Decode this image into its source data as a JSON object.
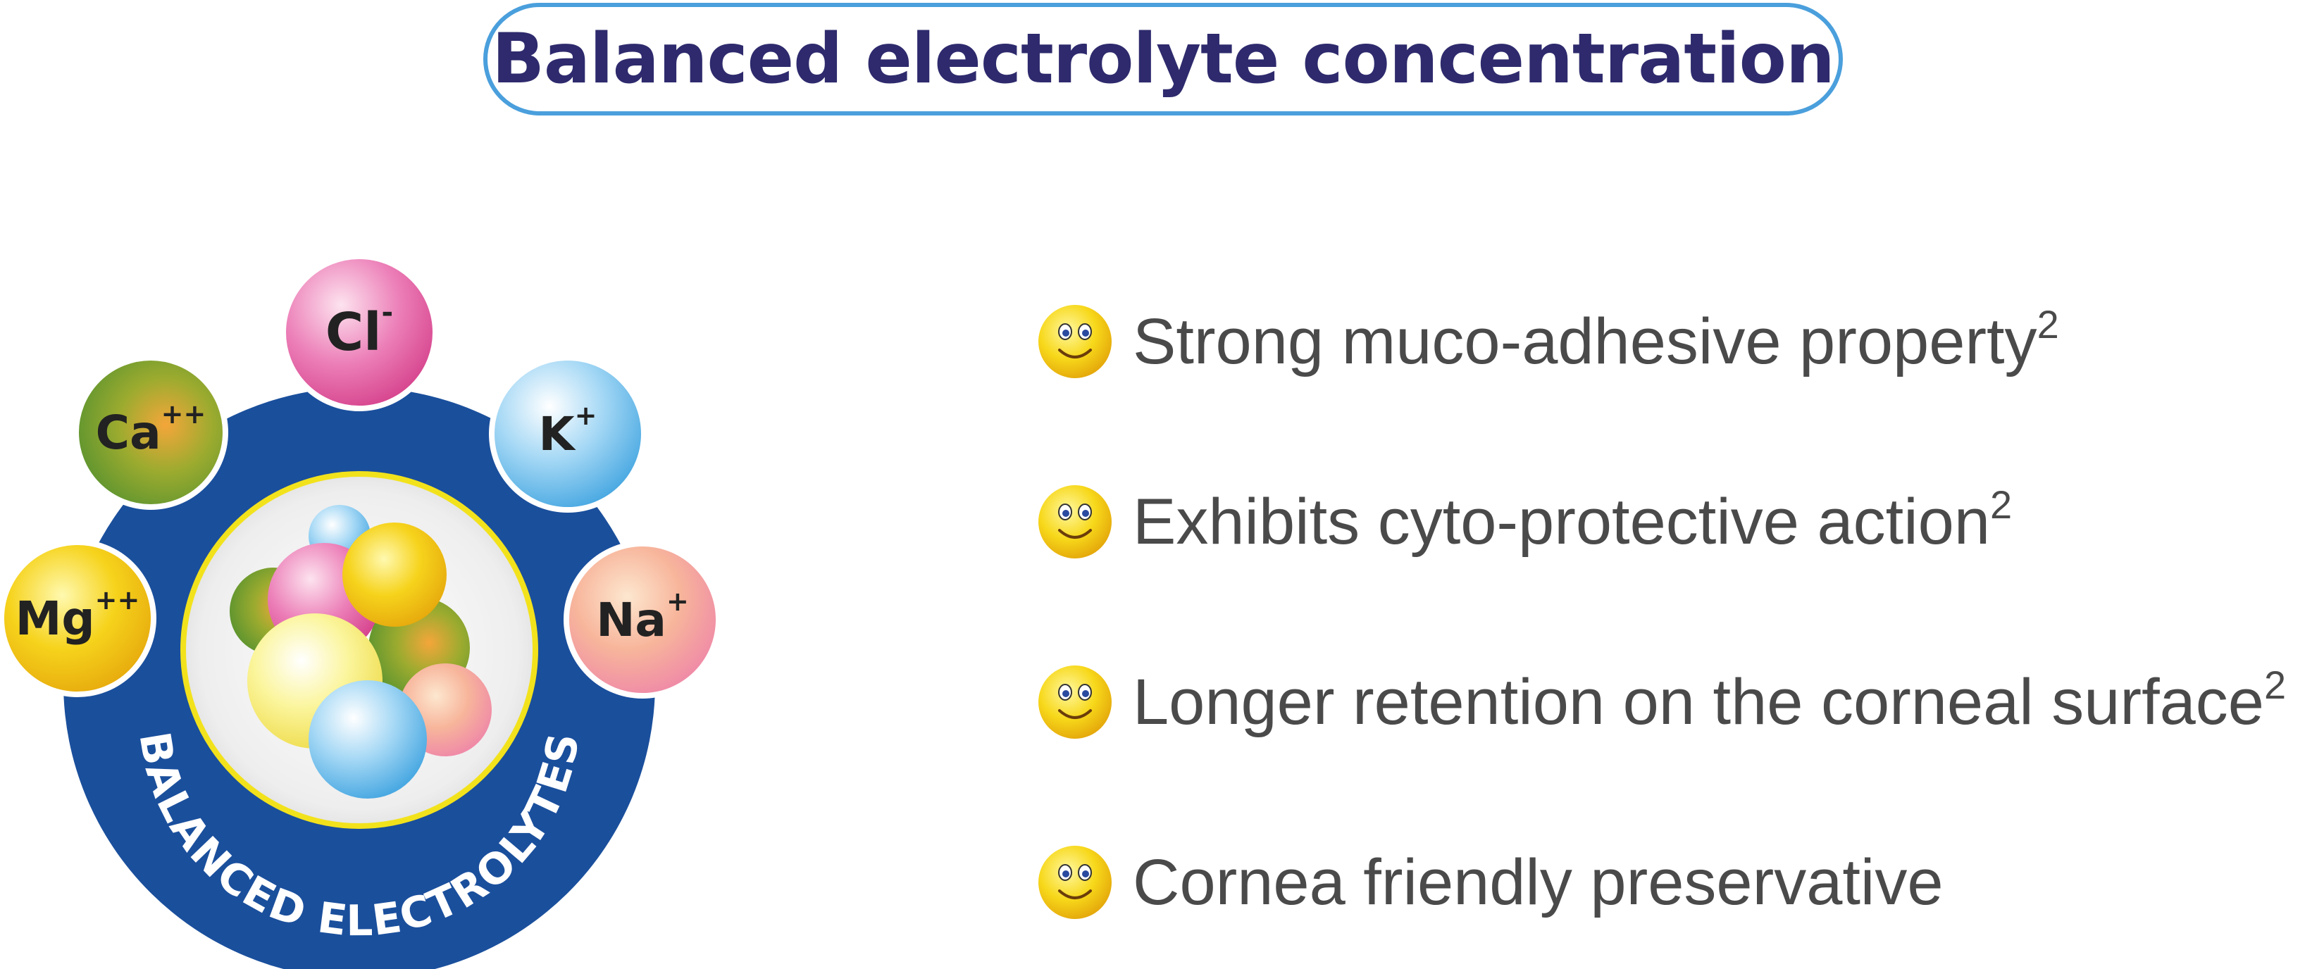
{
  "title": "Balanced electrolyte concentration",
  "emblem": {
    "ring_label": "BALANCED ELECTROLYTES",
    "ions": [
      {
        "symbol": "Mg",
        "charge": "++"
      },
      {
        "symbol": "Ca",
        "charge": "++"
      },
      {
        "symbol": "Cl",
        "charge": "-"
      },
      {
        "symbol": "K",
        "charge": "+"
      },
      {
        "symbol": "Na",
        "charge": "+"
      }
    ]
  },
  "benefits": [
    {
      "text": "Strong muco-adhesive property",
      "ref": "2",
      "icon": "smiley-icon"
    },
    {
      "text": "Exhibits cyto-protective action",
      "ref": "2",
      "icon": "smiley-icon"
    },
    {
      "text": "Longer retention on the corneal surface",
      "ref": "2",
      "icon": "smiley-icon"
    },
    {
      "text": "Cornea friendly preservative",
      "ref": "",
      "icon": "smiley-icon"
    }
  ],
  "colors": {
    "title_text": "#2e2a6d",
    "title_border": "#4a9fdc",
    "ring": "#1a4f9c",
    "inner_border": "#f2e21c",
    "body_text": "#4a4a4a"
  }
}
